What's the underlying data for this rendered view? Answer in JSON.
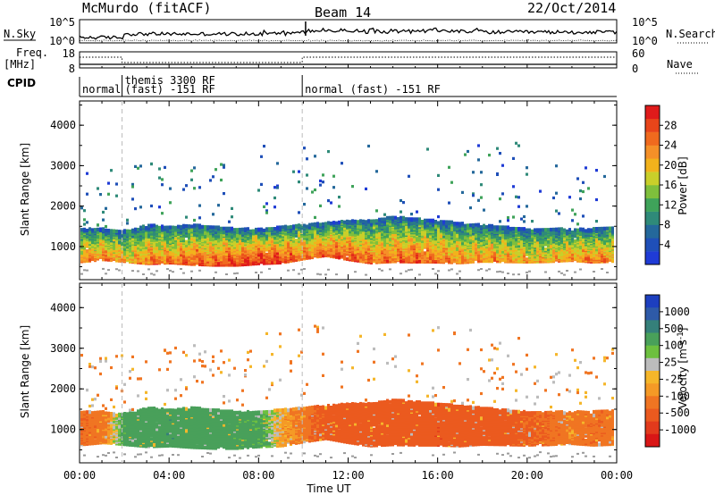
{
  "header": {
    "station": "McMurdo (fitACF)",
    "beam": "Beam 14",
    "date": "22/Oct/2014"
  },
  "top_panels": {
    "nsky_label": "N.Sky",
    "nsearch_label": "N.Search",
    "nsky_ticks": [
      "10^5",
      "10^0"
    ],
    "nsearch_ticks": [
      "10^5",
      "10^0"
    ],
    "freq_label": "Freq.",
    "freq_unit": "[MHz]",
    "freq_ticks": [
      "18",
      "8"
    ],
    "nave_label": "Nave",
    "nave_ticks": [
      "60",
      "0"
    ],
    "cpid_label": "CPID",
    "cpid_segments": [
      {
        "name": "normal",
        "start_h": 0.0,
        "end_h": 1.9
      },
      {
        "name": "themis 3300 RF",
        "name2": "(fast) -151 RF",
        "start_h": 1.9,
        "end_h": 9.95
      },
      {
        "name": "normal (fast) -151 RF",
        "start_h": 9.95,
        "end_h": 24.0
      }
    ]
  },
  "axes": {
    "ylabel": "Slant Range [km]",
    "xlabel": "Time UT",
    "x_ticks": [
      "00:00",
      "04:00",
      "08:00",
      "12:00",
      "16:00",
      "20:00",
      "00:00"
    ],
    "y_ticks": [
      "1000",
      "2000",
      "3000",
      "4000"
    ]
  },
  "chart_data": [
    {
      "type": "heatmap",
      "name": "power",
      "xlabel": "Time UT",
      "ylabel": "Slant Range [km]",
      "xlim": [
        0,
        24
      ],
      "ylim": [
        180,
        4600
      ],
      "colorbar": {
        "label": "Power [dB]",
        "ticks": [
          "4",
          "8",
          "12",
          "16",
          "20",
          "24",
          "28"
        ],
        "colors": [
          "#1f3bd6",
          "#1f4fb8",
          "#24689b",
          "#2f8a79",
          "#3fa35a",
          "#7fbf3c",
          "#c9cf2a",
          "#f2b21c",
          "#f59028",
          "#f06a1e",
          "#e8451a",
          "#e01b1b"
        ]
      },
      "ground_scatter_band_km": [
        550,
        1550
      ],
      "series": [
        {
          "x": [
            0,
            1,
            2,
            3,
            4,
            5,
            6,
            7,
            8,
            9,
            10,
            11,
            12,
            13,
            14,
            15,
            16,
            17,
            18,
            19,
            20,
            21,
            22,
            23,
            24
          ],
          "y_low_km": [
            650,
            700,
            650,
            600,
            620,
            580,
            560,
            560,
            600,
            620,
            720,
            800,
            700,
            620,
            650,
            640,
            640,
            620,
            660,
            650,
            640,
            650,
            680,
            640,
            660
          ],
          "y_high_km": [
            1450,
            1450,
            1400,
            1550,
            1500,
            1550,
            1500,
            1450,
            1450,
            1500,
            1550,
            1600,
            1650,
            1650,
            1750,
            1700,
            1650,
            1600,
            1550,
            1500,
            1450,
            1450,
            1450,
            1450,
            1500
          ],
          "peak_db": [
            22,
            24,
            20,
            24,
            24,
            26,
            26,
            28,
            30,
            28,
            24,
            26,
            28,
            24,
            24,
            26,
            24,
            22,
            22,
            22,
            20,
            20,
            22,
            24,
            22
          ]
        }
      ]
    },
    {
      "type": "heatmap",
      "name": "velocity",
      "xlabel": "Time UT",
      "ylabel": "Slant Range [km]",
      "xlim": [
        0,
        24
      ],
      "ylim": [
        180,
        4600
      ],
      "colorbar": {
        "label": "Velocity [m s^-1]",
        "ticks": [
          "1000",
          "500",
          "100",
          "25",
          "-25",
          "-100",
          "-500",
          "-1000"
        ],
        "colors": [
          "#1d3fbf",
          "#2e5aa8",
          "#35807a",
          "#49a05a",
          "#6dc03f",
          "#bcbcbc",
          "#f5b62a",
          "#f59a26",
          "#f07522",
          "#eb5a1f",
          "#e23a1c",
          "#d91616"
        ]
      },
      "series": [
        {
          "x": [
            0,
            1,
            2,
            3,
            4,
            5,
            6,
            7,
            8,
            9,
            10,
            11,
            12,
            13,
            14,
            15,
            16,
            17,
            18,
            19,
            20,
            21,
            22,
            23,
            24
          ],
          "velocity_ms": [
            -200,
            -150,
            180,
            200,
            220,
            200,
            180,
            160,
            150,
            -50,
            -150,
            -300,
            -400,
            -350,
            -350,
            -350,
            -400,
            -350,
            -300,
            -300,
            -250,
            -200,
            -150,
            -200,
            -150
          ]
        }
      ]
    }
  ]
}
